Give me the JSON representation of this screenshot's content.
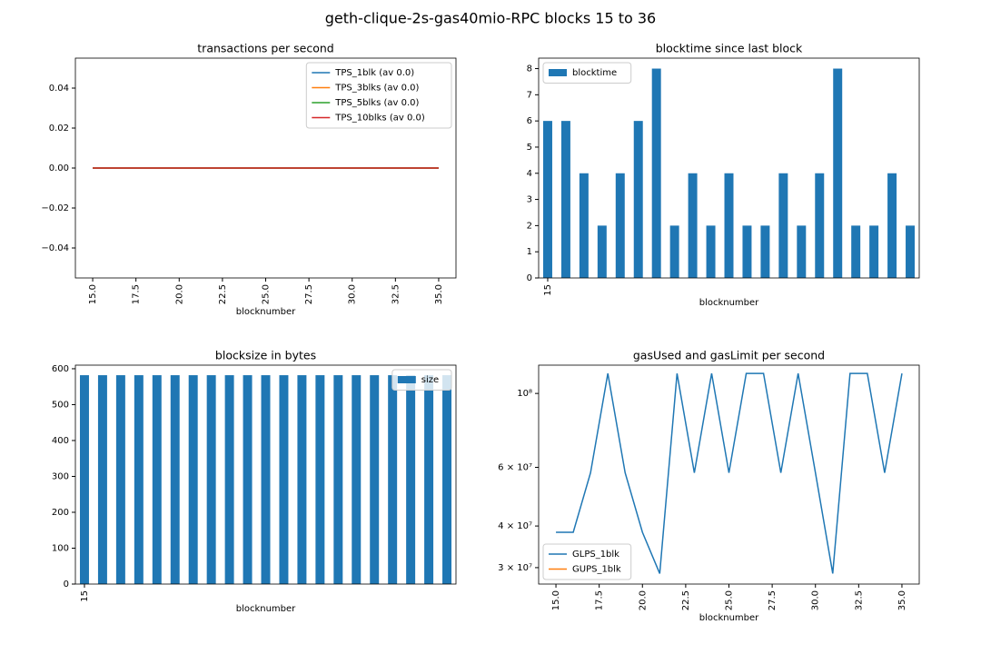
{
  "title": "geth-clique-2s-gas40mio-RPC blocks 15 to 36",
  "chart_data": [
    {
      "type": "line",
      "title": "transactions per second",
      "xlabel": "blocknumber",
      "legend": "upper right",
      "x": [
        15,
        16,
        17,
        18,
        19,
        20,
        21,
        22,
        23,
        24,
        25,
        26,
        27,
        28,
        29,
        30,
        31,
        32,
        33,
        34,
        35
      ],
      "series": [
        {
          "name": "TPS_1blk (av 0.0)",
          "color": "#1f77b4",
          "values": [
            0,
            0,
            0,
            0,
            0,
            0,
            0,
            0,
            0,
            0,
            0,
            0,
            0,
            0,
            0,
            0,
            0,
            0,
            0,
            0,
            0
          ]
        },
        {
          "name": "TPS_3blks (av 0.0)",
          "color": "#ff7f0e",
          "values": [
            0,
            0,
            0,
            0,
            0,
            0,
            0,
            0,
            0,
            0,
            0,
            0,
            0,
            0,
            0,
            0,
            0,
            0,
            0,
            0,
            0
          ]
        },
        {
          "name": "TPS_5blks (av 0.0)",
          "color": "#2ca02c",
          "values": [
            0,
            0,
            0,
            0,
            0,
            0,
            0,
            0,
            0,
            0,
            0,
            0,
            0,
            0,
            0,
            0,
            0,
            0,
            0,
            0,
            0
          ]
        },
        {
          "name": "TPS_10blks (av 0.0)",
          "color": "#d62728",
          "values": [
            0,
            0,
            0,
            0,
            0,
            0,
            0,
            0,
            0,
            0,
            0,
            0,
            0,
            0,
            0,
            0,
            0,
            0,
            0,
            0,
            0
          ]
        }
      ],
      "xlim": [
        14,
        36
      ],
      "xticks": [
        {
          "value": 15,
          "label": "15.0"
        },
        17.5,
        {
          "value": 20,
          "label": "20.0"
        },
        22.5,
        {
          "value": 25,
          "label": "25.0"
        },
        27.5,
        {
          "value": 30,
          "label": "30.0"
        },
        32.5,
        {
          "value": 35,
          "label": "35.0"
        }
      ],
      "ylim": [
        -0.055,
        0.055
      ],
      "yticks": [
        {
          "value": -0.04,
          "label": "−0.04"
        },
        {
          "value": -0.02,
          "label": "−0.02"
        },
        {
          "value": 0,
          "label": "0.00"
        },
        0.02,
        0.04
      ]
    },
    {
      "type": "bar",
      "title": "blocktime since last block",
      "xlabel": "blocknumber",
      "legend": "upper left",
      "categories": [
        "15",
        null,
        null,
        null,
        null,
        null,
        null,
        null,
        null,
        null,
        null,
        null,
        null,
        null,
        null,
        null,
        null,
        null,
        null,
        null,
        null
      ],
      "series": [
        {
          "name": "blocktime",
          "color": "#1f77b4",
          "values": [
            6,
            6,
            4,
            2,
            4,
            6,
            8,
            2,
            4,
            2,
            4,
            2,
            2,
            4,
            2,
            4,
            8,
            2,
            2,
            4,
            2
          ]
        }
      ],
      "ylim": [
        0,
        8.4
      ],
      "yticks": [
        0,
        1,
        2,
        3,
        4,
        5,
        6,
        7,
        8
      ]
    },
    {
      "type": "bar",
      "title": "blocksize in bytes",
      "xlabel": "blocknumber",
      "legend": "upper right",
      "categories": [
        "15",
        null,
        null,
        null,
        null,
        null,
        null,
        null,
        null,
        null,
        null,
        null,
        null,
        null,
        null,
        null,
        null,
        null,
        null,
        null,
        null
      ],
      "series": [
        {
          "name": "size",
          "color": "#1f77b4",
          "values": [
            582,
            582,
            582,
            582,
            582,
            582,
            582,
            582,
            582,
            582,
            582,
            582,
            582,
            582,
            582,
            582,
            582,
            582,
            582,
            582,
            582
          ]
        }
      ],
      "ylim": [
        0,
        610
      ],
      "yticks": [
        0,
        100,
        200,
        300,
        400,
        500,
        600
      ]
    },
    {
      "type": "line",
      "title": "gasUsed and gasLimit per second",
      "xlabel": "blocknumber",
      "legend": "lower left",
      "ylog": true,
      "x": [
        15,
        16,
        17,
        18,
        19,
        20,
        21,
        22,
        23,
        24,
        25,
        26,
        27,
        28,
        29,
        30,
        31,
        32,
        33,
        34,
        35
      ],
      "series": [
        {
          "name": "GLPS_1blk",
          "color": "#1f77b4",
          "values": [
            38300000,
            38300000,
            57800000,
            114800000,
            57800000,
            38300000,
            28800000,
            114800000,
            57800000,
            114800000,
            57800000,
            114800000,
            114800000,
            57800000,
            114800000,
            57800000,
            28800000,
            114800000,
            114800000,
            57800000,
            114800000
          ]
        },
        {
          "name": "GUPS_1blk",
          "color": "#ff7f0e",
          "values": [
            null,
            null,
            null,
            null,
            null,
            null,
            null,
            null,
            null,
            null,
            null,
            null,
            null,
            null,
            null,
            null,
            null,
            null,
            null,
            null,
            null
          ]
        }
      ],
      "xlim": [
        14,
        36
      ],
      "xticks": [
        {
          "value": 15,
          "label": "15.0"
        },
        17.5,
        {
          "value": 20,
          "label": "20.0"
        },
        22.5,
        {
          "value": 25,
          "label": "25.0"
        },
        27.5,
        {
          "value": 30,
          "label": "30.0"
        },
        32.5,
        {
          "value": 35,
          "label": "35.0"
        }
      ],
      "ylim": [
        26780000,
        121600000
      ],
      "yticks": [
        {
          "value": 30000000,
          "label": "3 × 10⁷"
        },
        {
          "value": 40000000,
          "label": "4 × 10⁷"
        },
        {
          "value": 60000000,
          "label": "6 × 10⁷"
        },
        {
          "value": 100000000,
          "label": "10⁸"
        }
      ]
    }
  ]
}
